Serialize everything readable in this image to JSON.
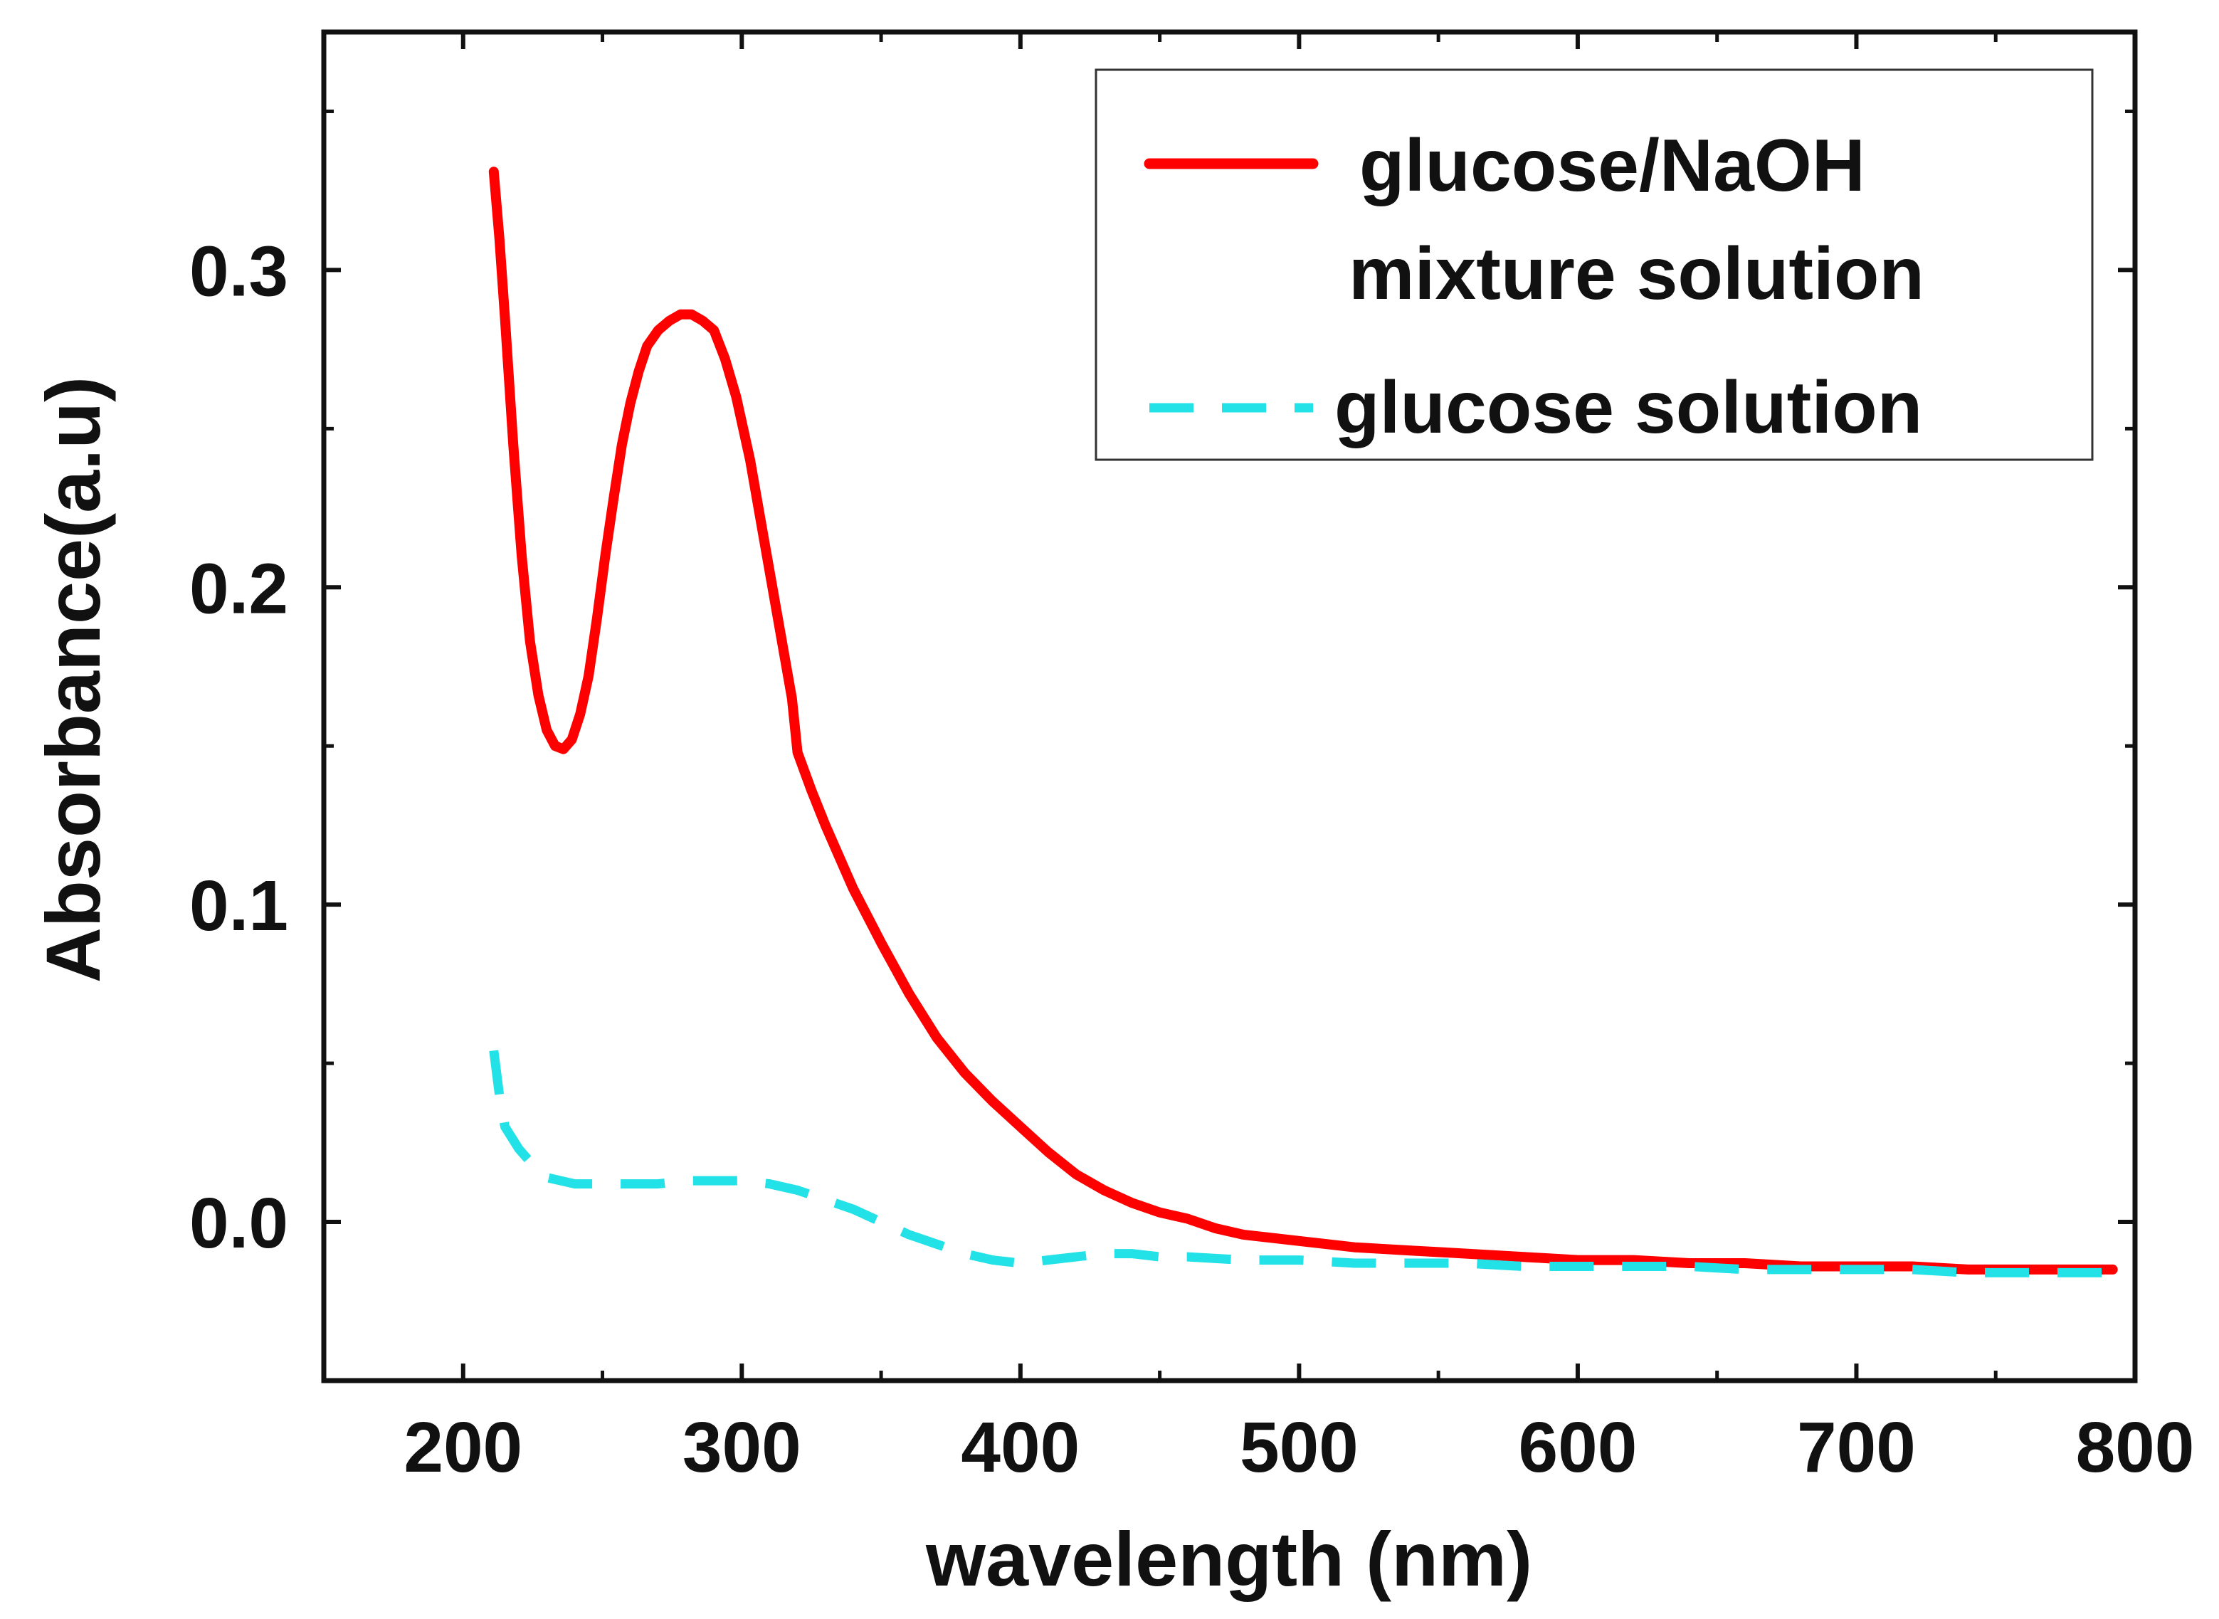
{
  "chart_data": {
    "type": "line",
    "title": "",
    "xlabel": "wavelength (nm)",
    "ylabel": "Absorbance(a.u)",
    "xlim": [
      150,
      800
    ],
    "ylim": [
      -0.05,
      0.375
    ],
    "x_ticks": [
      200,
      300,
      400,
      500,
      600,
      700,
      800
    ],
    "x_tick_labels": [
      "200",
      "300",
      "400",
      "500",
      "600",
      "700",
      "800"
    ],
    "y_ticks": [
      0.0,
      0.1,
      0.2,
      0.3
    ],
    "y_tick_labels": [
      "0.0",
      "0.1",
      "0.2",
      "0.3"
    ],
    "grid": false,
    "legend_position": "top-right",
    "series": [
      {
        "name": "glucose/NaOH mixture solution",
        "legend_lines": [
          "glucose/NaOH",
          "mixture solution"
        ],
        "color": "#ff0000",
        "style": "solid",
        "x": [
          211,
          213,
          215,
          218,
          221,
          224,
          227,
          230,
          233,
          236,
          239,
          242,
          245,
          248,
          251,
          254,
          257,
          260,
          263,
          266,
          270,
          274,
          278,
          282,
          286,
          290,
          294,
          298,
          303,
          308,
          313,
          318,
          320,
          325,
          330,
          340,
          350,
          360,
          370,
          380,
          390,
          400,
          410,
          420,
          430,
          440,
          450,
          460,
          470,
          480,
          500,
          520,
          540,
          560,
          580,
          600,
          620,
          640,
          660,
          680,
          700,
          720,
          740,
          760,
          780,
          792
        ],
        "values": [
          0.331,
          0.31,
          0.285,
          0.245,
          0.21,
          0.183,
          0.166,
          0.155,
          0.15,
          0.149,
          0.152,
          0.16,
          0.172,
          0.19,
          0.21,
          0.228,
          0.245,
          0.258,
          0.268,
          0.276,
          0.281,
          0.284,
          0.286,
          0.286,
          0.284,
          0.281,
          0.272,
          0.26,
          0.24,
          0.215,
          0.19,
          0.165,
          0.148,
          0.136,
          0.125,
          0.105,
          0.088,
          0.072,
          0.058,
          0.047,
          0.038,
          0.03,
          0.022,
          0.015,
          0.01,
          0.006,
          0.003,
          0.001,
          -0.002,
          -0.004,
          -0.006,
          -0.008,
          -0.009,
          -0.01,
          -0.011,
          -0.012,
          -0.012,
          -0.013,
          -0.013,
          -0.014,
          -0.014,
          -0.014,
          -0.015,
          -0.015,
          -0.015,
          -0.015
        ]
      },
      {
        "name": "glucose solution",
        "legend_lines": [
          "glucose solution"
        ],
        "color": "#22e2e8",
        "style": "dashed",
        "x": [
          211,
          213,
          215,
          220,
          225,
          230,
          240,
          250,
          260,
          270,
          280,
          290,
          300,
          310,
          320,
          330,
          340,
          350,
          360,
          370,
          380,
          390,
          400,
          410,
          420,
          430,
          440,
          450,
          460,
          480,
          500,
          520,
          540,
          560,
          580,
          600,
          620,
          640,
          660,
          680,
          700,
          720,
          740,
          760,
          780,
          792
        ],
        "values": [
          0.054,
          0.04,
          0.03,
          0.023,
          0.018,
          0.014,
          0.012,
          0.012,
          0.012,
          0.012,
          0.013,
          0.013,
          0.013,
          0.012,
          0.01,
          0.007,
          0.004,
          0.0,
          -0.004,
          -0.007,
          -0.01,
          -0.012,
          -0.013,
          -0.012,
          -0.011,
          -0.01,
          -0.01,
          -0.011,
          -0.011,
          -0.012,
          -0.012,
          -0.013,
          -0.013,
          -0.013,
          -0.014,
          -0.014,
          -0.014,
          -0.014,
          -0.015,
          -0.015,
          -0.015,
          -0.015,
          -0.016,
          -0.016,
          -0.016,
          -0.016
        ]
      }
    ]
  }
}
